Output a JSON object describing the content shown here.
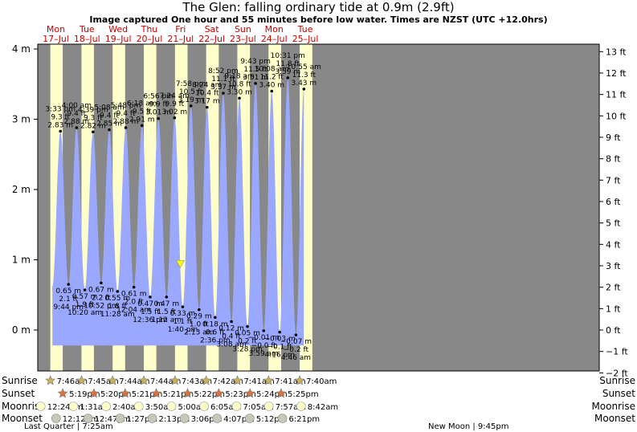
{
  "title": "The Glen: falling  ordinary tide at 0.9m (2.9ft)",
  "subtitle": "Image captured One hour and 55 minutes before low water. Times are NZST (UTC +12.0hrs)",
  "colors": {
    "night": "#888888",
    "day": "#ffffcc",
    "water": "#9aa8ff",
    "dayLabel": "#cc0000",
    "marker": "#ffff00"
  },
  "chart_data": {
    "type": "area",
    "title": "The Glen: falling  ordinary tide at 0.9m (2.9ft)",
    "y_left_unit": "m",
    "y_right_unit": "ft",
    "ylim_m": [
      -0.6,
      4.2
    ],
    "left_ticks": [
      "4 m",
      "3 m",
      "2 m",
      "1 m",
      "0 m"
    ],
    "right_ticks": [
      "13 ft",
      "12 ft",
      "11 ft",
      "10 ft",
      "9 ft",
      "8 ft",
      "7 ft",
      "6 ft",
      "5 ft",
      "4 ft",
      "3 ft",
      "2 ft",
      "1 ft",
      "0 ft",
      "−1 ft",
      "−2 ft"
    ],
    "days": [
      {
        "dow": "Mon",
        "date": "17–Jul"
      },
      {
        "dow": "Tue",
        "date": "18–Jul"
      },
      {
        "dow": "Wed",
        "date": "19–Jul"
      },
      {
        "dow": "Thu",
        "date": "20–Jul"
      },
      {
        "dow": "Fri",
        "date": "21–Jul"
      },
      {
        "dow": "Sat",
        "date": "22–Jul"
      },
      {
        "dow": "Sun",
        "date": "23–Jul"
      },
      {
        "dow": "Mon",
        "date": "24–Jul"
      },
      {
        "dow": "Tue",
        "date": "25–Jul"
      }
    ],
    "tides": [
      {
        "type": "high",
        "time": "3:33 pm",
        "ft": "9.3 ft",
        "m": 2.83,
        "m_label": "2.83 m"
      },
      {
        "type": "low",
        "time": "9:44 pm",
        "ft": "2.1 ft",
        "m": 0.65,
        "m_label": "0.65 m"
      },
      {
        "type": "high",
        "time": "4:00 am",
        "ft": "9.4 ft",
        "m": 2.88,
        "m_label": "2.88 m"
      },
      {
        "type": "low",
        "time": "10:20 am",
        "ft": "1.9 ft",
        "m": 0.57,
        "m_label": "0.57 m"
      },
      {
        "type": "high",
        "time": "4:39 pm",
        "ft": "9.3 ft",
        "m": 2.82,
        "m_label": "2.82 m"
      },
      {
        "type": "low",
        "time": "10:52 pm",
        "ft": "2.2 ft",
        "m": 0.67,
        "m_label": "0.67 m"
      },
      {
        "type": "high",
        "time": "5:08 am",
        "ft": "9.4 ft",
        "m": 2.85,
        "m_label": "2.85 m"
      },
      {
        "type": "low",
        "time": "11:28 am",
        "ft": "1.8 ft",
        "m": 0.55,
        "m_label": "0.55 m"
      },
      {
        "type": "high",
        "time": "5:48 pm",
        "ft": "9.4 ft",
        "m": 2.88,
        "m_label": "2.88 m"
      },
      {
        "type": "low",
        "time": "12:04 am",
        "ft": "2.0 ft",
        "m": 0.61,
        "m_label": "0.61 m"
      },
      {
        "type": "high",
        "time": "6:18 am",
        "ft": "9.5 ft",
        "m": 2.91,
        "m_label": "2.91 m"
      },
      {
        "type": "low",
        "time": "12:36 pm",
        "ft": "1.5 ft",
        "m": 0.47,
        "m_label": "0.47 m"
      },
      {
        "type": "high",
        "time": "6:56 pm",
        "ft": "9.9 ft",
        "m": 3.01,
        "m_label": "3.01 m"
      },
      {
        "type": "low",
        "time": "1:12 am",
        "ft": "1.5 ft",
        "m": 0.47,
        "m_label": "0.47 m"
      },
      {
        "type": "high",
        "time": "7:24 am",
        "ft": "9.9 ft",
        "m": 3.02,
        "m_label": "3.02 m"
      },
      {
        "type": "low",
        "time": "1:40 pm",
        "ft": "1.1 ft",
        "m": 0.33,
        "m_label": "0.33 m"
      },
      {
        "type": "high",
        "time": "7:58 pm",
        "ft": "10.5 ft",
        "m": 3.19,
        "m_label": "3.19 m"
      },
      {
        "type": "low",
        "time": "2:13 am",
        "ft": "1.0 ft",
        "m": 0.29,
        "m_label": "0.29 m"
      },
      {
        "type": "high",
        "time": "8:24 am",
        "ft": "10.4 ft",
        "m": 3.17,
        "m_label": "3.17 m"
      },
      {
        "type": "low",
        "time": "2:36 pm",
        "ft": "0.6 ft",
        "m": 0.18,
        "m_label": "0.18 m"
      },
      {
        "type": "high",
        "time": "8:52 pm",
        "ft": "11.1 ft",
        "m": 3.37,
        "m_label": "3.37 m"
      },
      {
        "type": "low",
        "time": "3:08 am",
        "ft": "0.4 ft",
        "m": 0.12,
        "m_label": "0.12 m"
      },
      {
        "type": "high",
        "time": "9:18 am",
        "ft": "10.8 ft",
        "m": 3.3,
        "m_label": "3.30 m"
      },
      {
        "type": "low",
        "time": "3:28 pm",
        "ft": "0.2 ft",
        "m": 0.05,
        "m_label": "0.05 m"
      },
      {
        "type": "high",
        "time": "9:43 pm",
        "ft": "11.5 ft",
        "m": 3.51,
        "m_label": "3.51 m"
      },
      {
        "type": "low",
        "time": "3:59 am",
        "ft": "−0.0 ft",
        "m": -0.01,
        "m_label": "−0.01 m"
      },
      {
        "type": "high",
        "time": "10:08 am",
        "ft": "11.2 ft",
        "m": 3.4,
        "m_label": "3.40 m"
      },
      {
        "type": "low",
        "time": "4:16 pm",
        "ft": "−0.1 ft",
        "m": -0.03,
        "m_label": "−0.03 m"
      },
      {
        "type": "high",
        "time": "10:31 pm",
        "ft": "11.8 ft",
        "m": 3.59,
        "m_label": "3.59 m"
      },
      {
        "type": "low",
        "time": "4:46 am",
        "ft": "−0.2 ft",
        "m": -0.07,
        "m_label": "−0.07 m"
      },
      {
        "type": "high",
        "time": "10:55 am",
        "ft": "11.3 ft",
        "m": 3.43,
        "m_label": "3.43 m"
      }
    ],
    "current_tide_m": 0.9,
    "astro": {
      "row_labels": [
        "Sunrise",
        "Sunset",
        "Moonrise",
        "Moonset"
      ],
      "sunrise": [
        "7:46am",
        "7:45am",
        "7:44am",
        "7:44am",
        "7:43am",
        "7:42am",
        "7:41am",
        "7:41am",
        "7:40am"
      ],
      "sunset": [
        "5:19pm",
        "5:20pm",
        "5:21pm",
        "5:21pm",
        "5:22pm",
        "5:23pm",
        "5:24pm",
        "5:25pm"
      ],
      "moonrise": [
        "12:24am",
        "1:31am",
        "2:40am",
        "3:50am",
        "5:00am",
        "6:05am",
        "7:05am",
        "7:57am",
        "8:42am"
      ],
      "moonset": [
        "12:12pm",
        "12:47pm",
        "1:27pm",
        "2:13pm",
        "3:06pm",
        "4:07pm",
        "5:12pm",
        "6:21pm"
      ],
      "phases": [
        "Last Quarter | 7:25am",
        "New Moon | 9:45pm"
      ]
    }
  }
}
